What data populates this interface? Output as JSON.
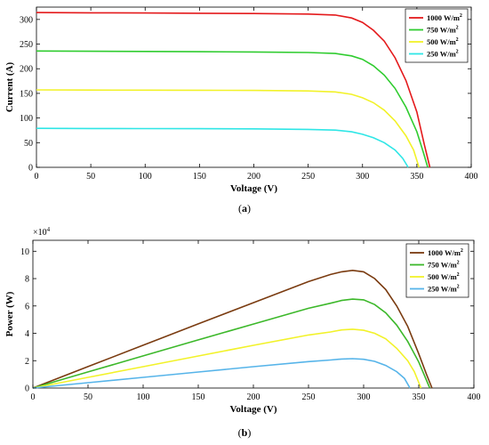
{
  "chart_data": [
    {
      "type": "line",
      "panel_label": "a",
      "xlabel": "Voltage (V)",
      "ylabel": "Current (A)",
      "xlim": [
        0,
        400
      ],
      "ylim": [
        0,
        325
      ],
      "xticks": [
        "0",
        "50",
        "100",
        "150",
        "200",
        "250",
        "300",
        "350",
        "400"
      ],
      "yticks": [
        "0",
        "50",
        "100",
        "150",
        "200",
        "250",
        "300"
      ],
      "legend_position": "top-right",
      "grid": false,
      "series": [
        {
          "name": "1000 W/m",
          "sup": "2",
          "color": "#e41a1c",
          "points": [
            [
              0,
              314
            ],
            [
              50,
              313.5
            ],
            [
              100,
              313
            ],
            [
              150,
              312.5
            ],
            [
              200,
              312
            ],
            [
              250,
              311
            ],
            [
              275,
              309
            ],
            [
              290,
              303
            ],
            [
              300,
              294
            ],
            [
              310,
              278
            ],
            [
              320,
              256
            ],
            [
              330,
              222
            ],
            [
              340,
              176
            ],
            [
              350,
              112
            ],
            [
              357,
              45
            ],
            [
              362,
              0
            ]
          ]
        },
        {
          "name": "750 W/m",
          "sup": "2",
          "color": "#2fcc2f",
          "points": [
            [
              0,
              236
            ],
            [
              50,
              235.5
            ],
            [
              100,
              235
            ],
            [
              150,
              234.5
            ],
            [
              200,
              234
            ],
            [
              250,
              233
            ],
            [
              275,
              231
            ],
            [
              290,
              226
            ],
            [
              300,
              219
            ],
            [
              310,
              206
            ],
            [
              320,
              187
            ],
            [
              330,
              160
            ],
            [
              340,
              122
            ],
            [
              350,
              72
            ],
            [
              356,
              30
            ],
            [
              360,
              0
            ]
          ]
        },
        {
          "name": "500 W/m",
          "sup": "2",
          "color": "#f2f22a",
          "points": [
            [
              0,
              157
            ],
            [
              50,
              156.8
            ],
            [
              100,
              156.5
            ],
            [
              150,
              156.3
            ],
            [
              200,
              156
            ],
            [
              250,
              155
            ],
            [
              275,
              153
            ],
            [
              290,
              148
            ],
            [
              300,
              141
            ],
            [
              310,
              131
            ],
            [
              320,
              116
            ],
            [
              330,
              94
            ],
            [
              340,
              64
            ],
            [
              347,
              35
            ],
            [
              352,
              0
            ]
          ]
        },
        {
          "name": "250 W/m",
          "sup": "2",
          "color": "#2fe6e6",
          "points": [
            [
              0,
              79
            ],
            [
              50,
              78.8
            ],
            [
              100,
              78.6
            ],
            [
              150,
              78.4
            ],
            [
              200,
              78
            ],
            [
              250,
              77
            ],
            [
              275,
              75.5
            ],
            [
              290,
              72
            ],
            [
              300,
              67
            ],
            [
              310,
              60
            ],
            [
              320,
              50
            ],
            [
              330,
              35
            ],
            [
              337,
              18
            ],
            [
              342,
              0
            ]
          ]
        }
      ]
    },
    {
      "type": "line",
      "panel_label": "b",
      "xlabel": "Voltage (V)",
      "ylabel": "Power (W)",
      "multiplier_base": "×10",
      "multiplier_exp": "4",
      "xlim": [
        0,
        400
      ],
      "ylim": [
        0,
        10.8
      ],
      "xticks": [
        "0",
        "50",
        "100",
        "150",
        "200",
        "250",
        "300",
        "350",
        "400"
      ],
      "yticks": [
        "0",
        "2",
        "4",
        "6",
        "8",
        "10"
      ],
      "legend_position": "top-right",
      "grid": false,
      "series": [
        {
          "name": "1000 W/m",
          "sup": "2",
          "color": "#7a3b10",
          "points": [
            [
              0,
              0
            ],
            [
              50,
              1.57
            ],
            [
              100,
              3.13
            ],
            [
              150,
              4.69
            ],
            [
              200,
              6.24
            ],
            [
              250,
              7.78
            ],
            [
              270,
              8.3
            ],
            [
              280,
              8.5
            ],
            [
              290,
              8.6
            ],
            [
              300,
              8.5
            ],
            [
              310,
              8.0
            ],
            [
              320,
              7.2
            ],
            [
              330,
              6.0
            ],
            [
              340,
              4.5
            ],
            [
              350,
              2.5
            ],
            [
              357,
              1.0
            ],
            [
              362,
              0
            ]
          ]
        },
        {
          "name": "750 W/m",
          "sup": "2",
          "color": "#3cb82a",
          "points": [
            [
              0,
              0
            ],
            [
              50,
              1.18
            ],
            [
              100,
              2.35
            ],
            [
              150,
              3.52
            ],
            [
              200,
              4.68
            ],
            [
              250,
              5.83
            ],
            [
              270,
              6.2
            ],
            [
              280,
              6.4
            ],
            [
              290,
              6.5
            ],
            [
              300,
              6.45
            ],
            [
              310,
              6.1
            ],
            [
              320,
              5.5
            ],
            [
              330,
              4.6
            ],
            [
              340,
              3.4
            ],
            [
              350,
              1.9
            ],
            [
              360,
              0
            ]
          ]
        },
        {
          "name": "500 W/m",
          "sup": "2",
          "color": "#f2f22a",
          "points": [
            [
              0,
              0
            ],
            [
              50,
              0.78
            ],
            [
              100,
              1.56
            ],
            [
              150,
              2.34
            ],
            [
              200,
              3.12
            ],
            [
              250,
              3.88
            ],
            [
              270,
              4.1
            ],
            [
              280,
              4.25
            ],
            [
              290,
              4.3
            ],
            [
              300,
              4.22
            ],
            [
              310,
              4.0
            ],
            [
              320,
              3.6
            ],
            [
              330,
              2.9
            ],
            [
              340,
              2.0
            ],
            [
              346,
              1.2
            ],
            [
              352,
              0
            ]
          ]
        },
        {
          "name": "250 W/m",
          "sup": "2",
          "color": "#56b4e9",
          "points": [
            [
              0,
              0
            ],
            [
              50,
              0.39
            ],
            [
              100,
              0.78
            ],
            [
              150,
              1.17
            ],
            [
              200,
              1.56
            ],
            [
              250,
              1.93
            ],
            [
              270,
              2.05
            ],
            [
              280,
              2.12
            ],
            [
              290,
              2.15
            ],
            [
              300,
              2.1
            ],
            [
              310,
              1.95
            ],
            [
              320,
              1.65
            ],
            [
              330,
              1.2
            ],
            [
              337,
              0.7
            ],
            [
              342,
              0
            ]
          ]
        }
      ]
    }
  ]
}
